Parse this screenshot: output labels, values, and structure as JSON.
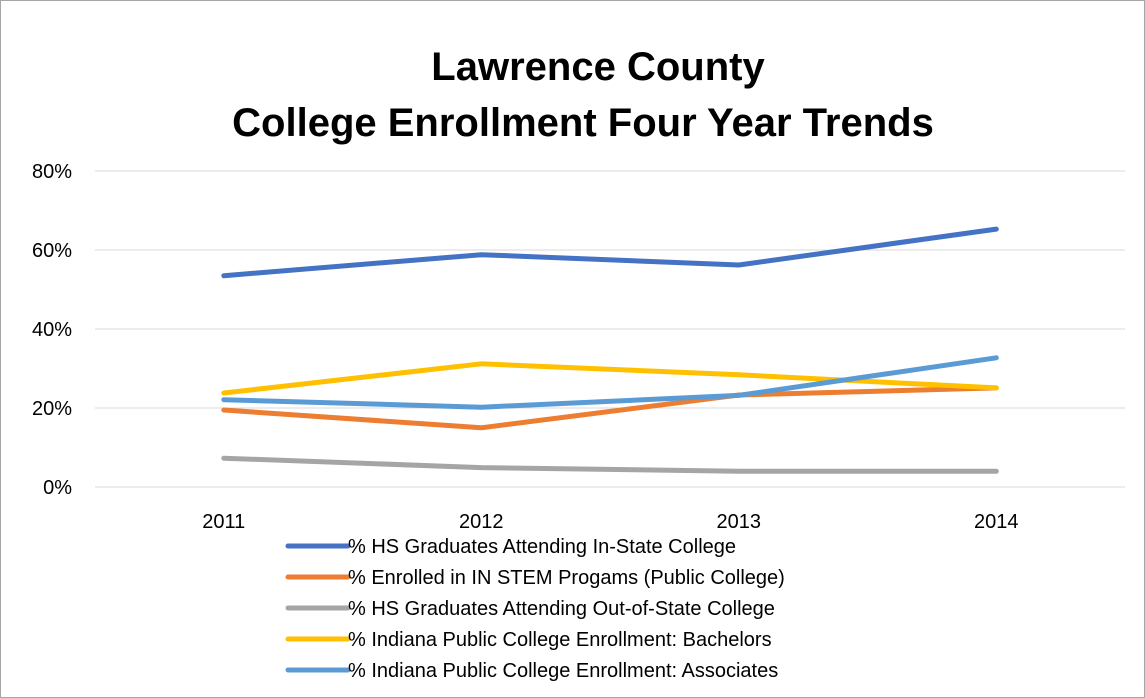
{
  "chart_data": {
    "type": "line",
    "title_lines": [
      "Lawrence County",
      "College Enrollment Four Year Trends"
    ],
    "categories": [
      "2011",
      "2012",
      "2013",
      "2014"
    ],
    "y_ticks": [
      "0%",
      "20%",
      "40%",
      "60%",
      "80%"
    ],
    "ylim": [
      0,
      80
    ],
    "y_unit": "%",
    "grid": true,
    "legend_position": "bottom",
    "series": [
      {
        "name": "% HS Graduates Attending In-State College",
        "color": "#4472C4",
        "values": [
          53.5,
          58.8,
          56.2,
          65.3
        ]
      },
      {
        "name": "% Enrolled in IN STEM Progams (Public College)",
        "color": "#ED7D31",
        "values": [
          19.5,
          15.0,
          23.3,
          25.1
        ]
      },
      {
        "name": "% HS Graduates Attending Out-of-State College",
        "color": "#A5A5A5",
        "values": [
          7.3,
          4.9,
          4.0,
          4.0
        ]
      },
      {
        "name": "% Indiana Public College Enrollment: Bachelors",
        "color": "#FFC000",
        "values": [
          23.8,
          31.2,
          28.4,
          25.1
        ]
      },
      {
        "name": "% Indiana Public College Enrollment: Associates",
        "color": "#5B9BD5",
        "values": [
          22.1,
          20.2,
          23.2,
          32.7
        ]
      }
    ]
  }
}
